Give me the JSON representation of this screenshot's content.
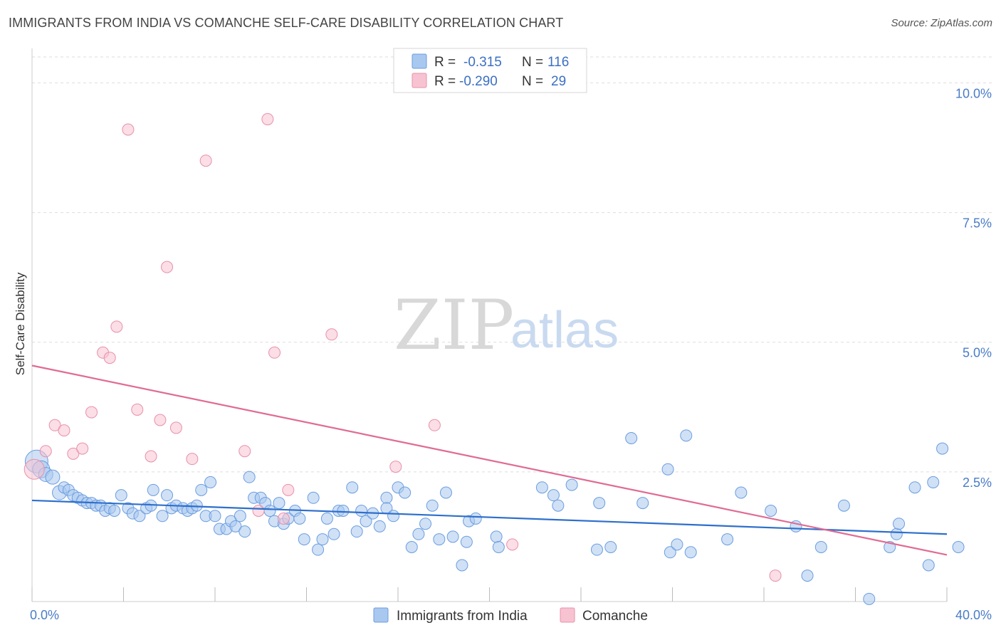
{
  "header": {
    "title": "IMMIGRANTS FROM INDIA VS COMANCHE SELF-CARE DISABILITY CORRELATION CHART",
    "source": "Source: ZipAtlas.com"
  },
  "watermark": {
    "part1": "ZIP",
    "part2": "atlas"
  },
  "legend_box": {
    "rows": [
      {
        "r_label": "R =",
        "r_value": "-0.315",
        "n_label": "N =",
        "n_value": "116",
        "color": "#a9c8ef"
      },
      {
        "r_label": "R =",
        "r_value": "-0.290",
        "n_label": "N =",
        "n_value": "29",
        "color": "#f5b6c8"
      }
    ]
  },
  "bottom_legend": [
    {
      "label": "Immigrants from India",
      "color": "#a9c8ef"
    },
    {
      "label": "Comanche",
      "color": "#f5b6c8"
    }
  ],
  "colors": {
    "blue_fill": "#a9c8ef",
    "blue_stroke": "#6b9de0",
    "blue_line": "#2e6fcc",
    "pink_fill": "#f7c3d2",
    "pink_stroke": "#e890aa",
    "pink_line": "#e06b93",
    "grid": "#dddddd"
  },
  "chart_data": {
    "type": "scatter",
    "title": "IMMIGRANTS FROM INDIA VS COMANCHE SELF-CARE DISABILITY CORRELATION CHART",
    "xlabel": "",
    "ylabel": "Self-Care Disability",
    "xlim": [
      0,
      40
    ],
    "ylim": [
      0,
      10.5
    ],
    "x_tick_labels": [
      "0.0%",
      "40.0%"
    ],
    "y_ticks": [
      2.5,
      5.0,
      7.5,
      10.0
    ],
    "y_tick_labels": [
      "2.5%",
      "5.0%",
      "7.5%",
      "10.0%"
    ],
    "grid": true,
    "legend_position": "top-center",
    "series": [
      {
        "name": "Immigrants from India",
        "trend": {
          "x": [
            0,
            40
          ],
          "y": [
            1.95,
            1.3
          ]
        },
        "points": [
          [
            0.2,
            2.7,
            16
          ],
          [
            0.4,
            2.55,
            12
          ],
          [
            0.6,
            2.45,
            10
          ],
          [
            0.9,
            2.4,
            10
          ],
          [
            1.2,
            2.1,
            10
          ],
          [
            1.4,
            2.2,
            8
          ],
          [
            1.6,
            2.15,
            8
          ],
          [
            1.8,
            2.05,
            8
          ],
          [
            2.0,
            2.0,
            8
          ],
          [
            2.2,
            1.95,
            8
          ],
          [
            2.4,
            1.9,
            8
          ],
          [
            2.6,
            1.9,
            8
          ],
          [
            2.8,
            1.85,
            8
          ],
          [
            3.0,
            1.85,
            8
          ],
          [
            3.2,
            1.75,
            8
          ],
          [
            3.4,
            1.8,
            8
          ],
          [
            3.6,
            1.75,
            8
          ],
          [
            3.9,
            2.05,
            8
          ],
          [
            4.2,
            1.8,
            8
          ],
          [
            4.4,
            1.7,
            8
          ],
          [
            4.7,
            1.65,
            8
          ],
          [
            5.0,
            1.8,
            8
          ],
          [
            5.2,
            1.85,
            8
          ],
          [
            5.3,
            2.15,
            8
          ],
          [
            5.7,
            1.65,
            8
          ],
          [
            5.9,
            2.05,
            8
          ],
          [
            6.1,
            1.8,
            8
          ],
          [
            6.3,
            1.85,
            8
          ],
          [
            6.6,
            1.8,
            8
          ],
          [
            6.8,
            1.75,
            8
          ],
          [
            7.0,
            1.8,
            8
          ],
          [
            7.2,
            1.85,
            8
          ],
          [
            7.4,
            2.15,
            8
          ],
          [
            7.6,
            1.65,
            8
          ],
          [
            7.8,
            2.3,
            8
          ],
          [
            8.0,
            1.65,
            8
          ],
          [
            8.2,
            1.4,
            8
          ],
          [
            8.5,
            1.4,
            8
          ],
          [
            8.7,
            1.55,
            8
          ],
          [
            8.9,
            1.45,
            8
          ],
          [
            9.1,
            1.65,
            8
          ],
          [
            9.3,
            1.35,
            8
          ],
          [
            9.5,
            2.4,
            8
          ],
          [
            9.7,
            2.0,
            8
          ],
          [
            10.0,
            2.0,
            8
          ],
          [
            10.2,
            1.9,
            8
          ],
          [
            10.4,
            1.75,
            8
          ],
          [
            10.6,
            1.55,
            8
          ],
          [
            10.8,
            1.9,
            8
          ],
          [
            11.0,
            1.5,
            8
          ],
          [
            11.2,
            1.6,
            8
          ],
          [
            11.5,
            1.75,
            8
          ],
          [
            11.7,
            1.6,
            8
          ],
          [
            11.9,
            1.2,
            8
          ],
          [
            12.3,
            2.0,
            8
          ],
          [
            12.5,
            1.0,
            8
          ],
          [
            12.7,
            1.2,
            8
          ],
          [
            12.9,
            1.6,
            8
          ],
          [
            13.2,
            1.3,
            8
          ],
          [
            13.4,
            1.75,
            8
          ],
          [
            13.6,
            1.75,
            8
          ],
          [
            14.0,
            2.2,
            8
          ],
          [
            14.2,
            1.35,
            8
          ],
          [
            14.4,
            1.75,
            8
          ],
          [
            14.6,
            1.55,
            8
          ],
          [
            14.9,
            1.7,
            8
          ],
          [
            15.2,
            1.45,
            8
          ],
          [
            15.5,
            2.0,
            8
          ],
          [
            15.5,
            1.8,
            8
          ],
          [
            15.8,
            1.65,
            8
          ],
          [
            16.0,
            2.2,
            8
          ],
          [
            16.3,
            2.1,
            8
          ],
          [
            16.6,
            1.05,
            8
          ],
          [
            16.9,
            1.3,
            8
          ],
          [
            17.2,
            1.5,
            8
          ],
          [
            17.5,
            1.85,
            8
          ],
          [
            17.8,
            1.2,
            8
          ],
          [
            18.1,
            2.1,
            8
          ],
          [
            18.4,
            1.25,
            8
          ],
          [
            18.8,
            0.7,
            8
          ],
          [
            19.0,
            1.15,
            8
          ],
          [
            19.1,
            1.55,
            8
          ],
          [
            19.4,
            1.6,
            8
          ],
          [
            20.3,
            1.25,
            8
          ],
          [
            20.4,
            1.05,
            8
          ],
          [
            22.3,
            2.2,
            8
          ],
          [
            22.8,
            2.05,
            8
          ],
          [
            23.0,
            1.85,
            8
          ],
          [
            23.6,
            2.25,
            8
          ],
          [
            24.7,
            1.0,
            8
          ],
          [
            24.8,
            1.9,
            8
          ],
          [
            25.3,
            1.05,
            8
          ],
          [
            26.2,
            3.15,
            8
          ],
          [
            26.7,
            1.9,
            8
          ],
          [
            27.8,
            2.55,
            8
          ],
          [
            27.9,
            0.95,
            8
          ],
          [
            28.2,
            1.1,
            8
          ],
          [
            28.6,
            3.2,
            8
          ],
          [
            28.8,
            0.95,
            8
          ],
          [
            30.4,
            1.2,
            8
          ],
          [
            31.0,
            2.1,
            8
          ],
          [
            32.3,
            1.75,
            8
          ],
          [
            33.4,
            1.45,
            8
          ],
          [
            33.9,
            0.5,
            8
          ],
          [
            34.5,
            1.05,
            8
          ],
          [
            35.5,
            1.85,
            8
          ],
          [
            36.6,
            0.05,
            8
          ],
          [
            37.5,
            1.05,
            8
          ],
          [
            37.8,
            1.3,
            8
          ],
          [
            37.9,
            1.5,
            8
          ],
          [
            38.6,
            2.2,
            8
          ],
          [
            39.2,
            0.7,
            8
          ],
          [
            39.4,
            2.3,
            8
          ],
          [
            39.8,
            2.95,
            8
          ],
          [
            40.5,
            1.05,
            8
          ]
        ]
      },
      {
        "name": "Comanche",
        "trend": {
          "x": [
            0,
            40
          ],
          "y": [
            4.55,
            0.9
          ]
        },
        "points": [
          [
            0.1,
            2.55,
            14
          ],
          [
            0.6,
            2.9,
            8
          ],
          [
            1.0,
            3.4,
            8
          ],
          [
            1.4,
            3.3,
            8
          ],
          [
            1.8,
            2.85,
            8
          ],
          [
            2.2,
            2.95,
            8
          ],
          [
            2.6,
            3.65,
            8
          ],
          [
            3.1,
            4.8,
            8
          ],
          [
            3.4,
            4.7,
            8
          ],
          [
            3.7,
            5.3,
            8
          ],
          [
            4.2,
            9.1,
            8
          ],
          [
            4.6,
            3.7,
            8
          ],
          [
            5.2,
            2.8,
            8
          ],
          [
            5.6,
            3.5,
            8
          ],
          [
            5.9,
            6.45,
            8
          ],
          [
            6.3,
            3.35,
            8
          ],
          [
            7.0,
            2.75,
            8
          ],
          [
            7.6,
            8.5,
            8
          ],
          [
            9.3,
            2.9,
            8
          ],
          [
            9.9,
            1.75,
            8
          ],
          [
            10.3,
            9.3,
            8
          ],
          [
            10.6,
            4.8,
            8
          ],
          [
            11.0,
            1.6,
            8
          ],
          [
            11.2,
            2.15,
            8
          ],
          [
            13.1,
            5.15,
            8
          ],
          [
            15.9,
            2.6,
            8
          ],
          [
            17.6,
            3.4,
            8
          ],
          [
            21.0,
            1.1,
            8
          ],
          [
            32.5,
            0.5,
            8
          ]
        ]
      }
    ]
  }
}
